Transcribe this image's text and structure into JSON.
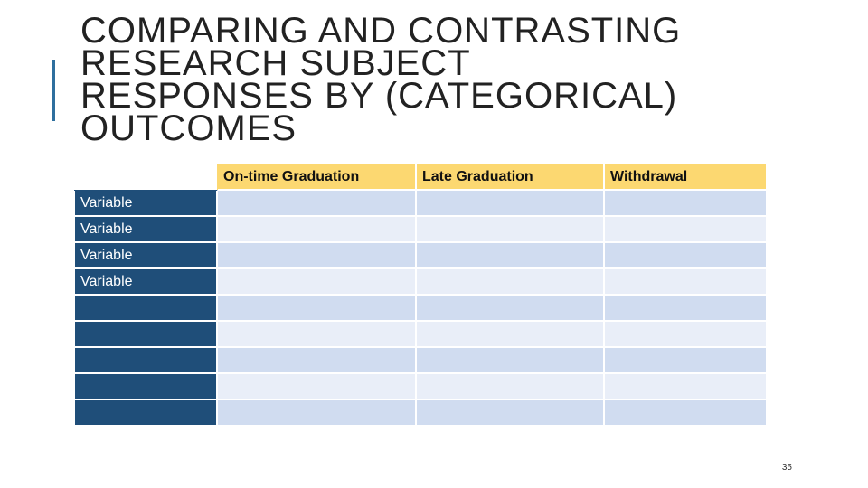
{
  "slide": {
    "title_lines": [
      "COMPARING AND CONTRASTING",
      "RESEARCH SUBJECT",
      "RESPONSES BY (CATEGORICAL)",
      "OUTCOMES"
    ],
    "page_number": "35"
  },
  "table": {
    "headers": [
      "On-time Graduation",
      "Late Graduation",
      "Withdrawal"
    ],
    "rows": [
      {
        "label": "Variable",
        "cells": [
          "",
          "",
          ""
        ]
      },
      {
        "label": "Variable",
        "cells": [
          "",
          "",
          ""
        ]
      },
      {
        "label": "Variable",
        "cells": [
          "",
          "",
          ""
        ]
      },
      {
        "label": "Variable",
        "cells": [
          "",
          "",
          ""
        ]
      },
      {
        "label": "",
        "cells": [
          "",
          "",
          ""
        ]
      },
      {
        "label": "",
        "cells": [
          "",
          "",
          ""
        ]
      },
      {
        "label": "",
        "cells": [
          "",
          "",
          ""
        ]
      },
      {
        "label": "",
        "cells": [
          "",
          "",
          ""
        ]
      },
      {
        "label": "",
        "cells": [
          "",
          "",
          ""
        ]
      }
    ]
  },
  "colors": {
    "header_fill": "#fcd871",
    "row_label_fill": "#1f4e79",
    "cell_fill_odd": "#d0dcf0",
    "cell_fill_even": "#e9eef8",
    "accent_bar": "#2e6f9e"
  }
}
